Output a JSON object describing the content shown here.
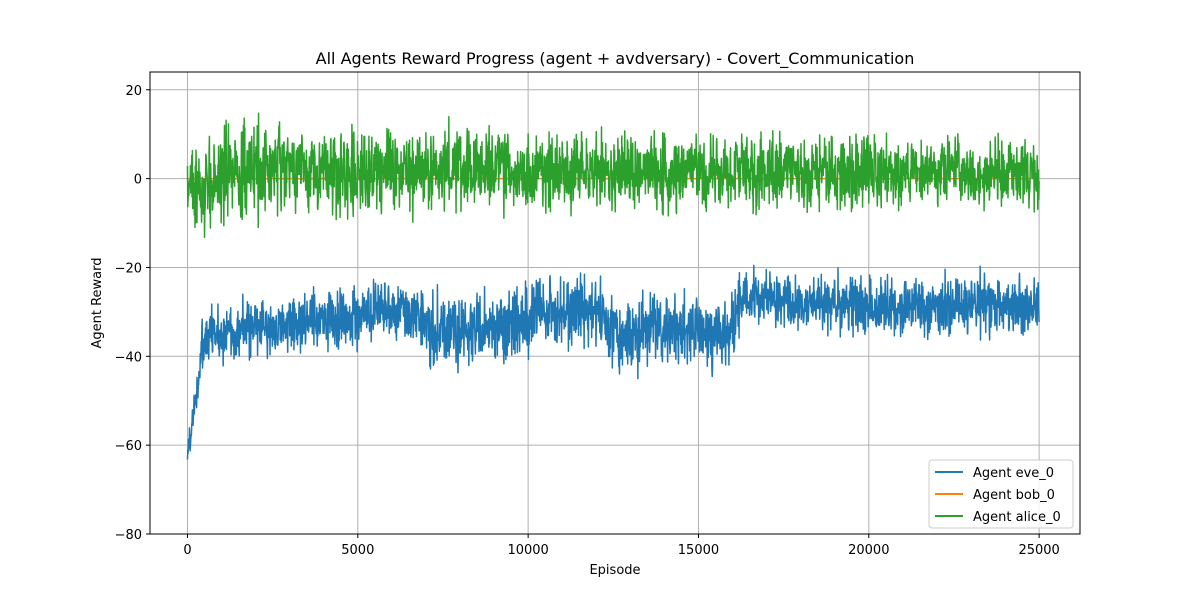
{
  "chart_data": {
    "type": "line",
    "title": "All Agents Reward Progress (agent + avdversary) - Covert_Communication",
    "xlabel": "Episode",
    "ylabel": "Agent Reward",
    "xlim": [
      -1100,
      26200
    ],
    "ylim": [
      -80,
      24
    ],
    "xticks": [
      0,
      5000,
      10000,
      15000,
      20000,
      25000
    ],
    "yticks": [
      -80,
      -60,
      -40,
      -20,
      0,
      20
    ],
    "grid": true,
    "legend_position": "lower-right",
    "x_range": [
      0,
      25000
    ],
    "series": [
      {
        "name": "Agent eve_0",
        "color": "#1f77b4",
        "trend_x": [
          0,
          100,
          200,
          300,
          400,
          500,
          700,
          1000,
          1500,
          2000,
          3000,
          4000,
          5000,
          6000,
          6900,
          7000,
          8000,
          9000,
          10000,
          11000,
          12000,
          12300,
          13000,
          14000,
          15000,
          16000,
          16200,
          17000,
          18000,
          19000,
          20000,
          21000,
          22000,
          23000,
          24000,
          25000
        ],
        "trend_mean": [
          -62,
          -57,
          -52,
          -46,
          -40,
          -37,
          -35,
          -35,
          -34,
          -33.5,
          -33,
          -32,
          -31,
          -30,
          -30,
          -34,
          -35,
          -33.5,
          -31,
          -30,
          -29.5,
          -34,
          -35,
          -34,
          -35,
          -35,
          -28,
          -27,
          -27.5,
          -28,
          -28.5,
          -29,
          -29,
          -28.5,
          -29,
          -29
        ],
        "trend_spread": [
          2,
          3,
          3,
          4,
          5,
          5,
          5,
          5,
          5,
          5,
          5,
          5,
          5,
          5,
          5,
          6,
          6,
          6,
          6,
          6,
          6,
          6,
          6,
          6,
          6,
          6,
          5,
          5,
          5,
          5,
          5,
          5,
          5,
          5,
          5,
          5
        ]
      },
      {
        "name": "Agent bob_0",
        "color": "#ff7f0e",
        "trend_x": [
          0,
          25000
        ],
        "trend_mean": [
          0,
          0
        ],
        "trend_spread": [
          0,
          0
        ]
      },
      {
        "name": "Agent alice_0",
        "color": "#2ca02c",
        "trend_x": [
          0,
          200,
          400,
          700,
          1000,
          2000,
          3000,
          5000,
          7000,
          10000,
          12000,
          15000,
          18000,
          20000,
          22000,
          25000
        ],
        "trend_mean": [
          -1,
          -3,
          -4,
          -1,
          1,
          2,
          2,
          2,
          2,
          1.5,
          1.5,
          1.5,
          1.5,
          1.5,
          1.5,
          1
        ],
        "trend_spread": [
          5,
          7,
          8,
          8,
          8,
          8,
          7,
          7,
          7,
          6.5,
          6.5,
          6.5,
          6,
          6,
          5.5,
          5.5
        ]
      }
    ]
  }
}
